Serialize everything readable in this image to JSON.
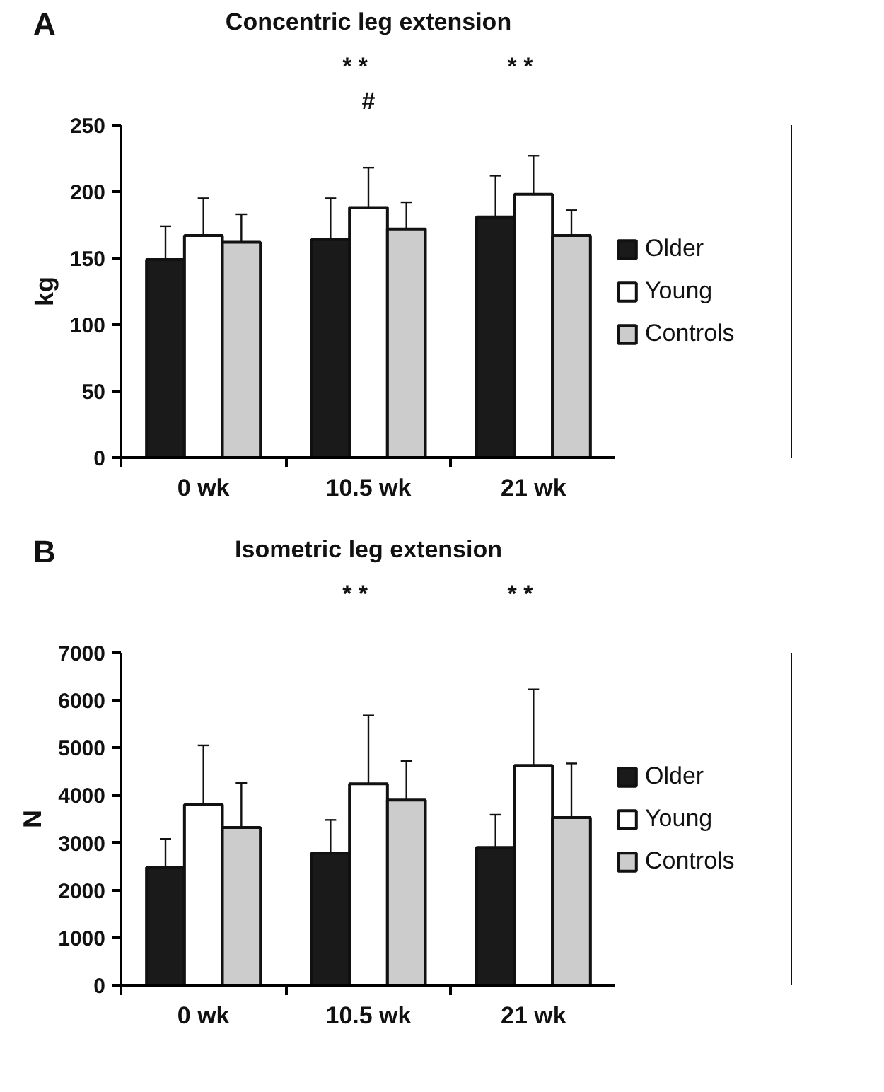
{
  "chart_data": [
    {
      "type": "bar",
      "title": "Concentric leg extension",
      "ylabel": "kg",
      "categories": [
        "0 wk",
        "10.5 wk",
        "21 wk"
      ],
      "series": [
        {
          "name": "Older",
          "color": "#1a1a1a",
          "values": [
            149,
            164,
            181
          ],
          "errors": [
            [
              149,
              174
            ],
            [
              164,
              195
            ],
            [
              181,
              212
            ]
          ]
        },
        {
          "name": "Young",
          "color": "#ffffff",
          "values": [
            167,
            188,
            198
          ],
          "errors": [
            [
              167,
              195
            ],
            [
              188,
              218
            ],
            [
              198,
              227
            ]
          ]
        },
        {
          "name": "Controls",
          "color": "#cccccc",
          "values": [
            162,
            172,
            167
          ],
          "errors": [
            [
              162,
              183
            ],
            [
              172,
              192
            ],
            [
              167,
              186
            ]
          ]
        }
      ],
      "ylim": [
        0,
        250
      ],
      "yticks": [
        0,
        50,
        100,
        150,
        200,
        250
      ],
      "grid": false,
      "legend": "right",
      "annotations": [
        "A",
        "*     *\n#",
        "*     *"
      ]
    },
    {
      "type": "bar",
      "title": "Isometric leg extension",
      "ylabel": "N",
      "categories": [
        "0 wk",
        "10.5 wk",
        "21 wk"
      ],
      "series": [
        {
          "name": "Older",
          "color": "#1a1a1a",
          "values": [
            2480,
            2780,
            2900
          ],
          "errors": [
            [
              2480,
              3080
            ],
            [
              2780,
              3480
            ],
            [
              2900,
              3590
            ]
          ]
        },
        {
          "name": "Young",
          "color": "#ffffff",
          "values": [
            3800,
            4240,
            4630
          ],
          "errors": [
            [
              3800,
              5050
            ],
            [
              4240,
              5680
            ],
            [
              4630,
              6230
            ]
          ]
        },
        {
          "name": "Controls",
          "color": "#cccccc",
          "values": [
            3320,
            3900,
            3530
          ],
          "errors": [
            [
              3320,
              4260
            ],
            [
              3900,
              4720
            ],
            [
              3530,
              4670
            ]
          ]
        }
      ],
      "ylim": [
        0,
        7000
      ],
      "yticks": [
        0,
        1000,
        2000,
        3000,
        4000,
        5000,
        6000,
        7000
      ],
      "grid": false,
      "legend": "right",
      "annotations": [
        "B",
        "*     *",
        "*     *"
      ]
    }
  ]
}
